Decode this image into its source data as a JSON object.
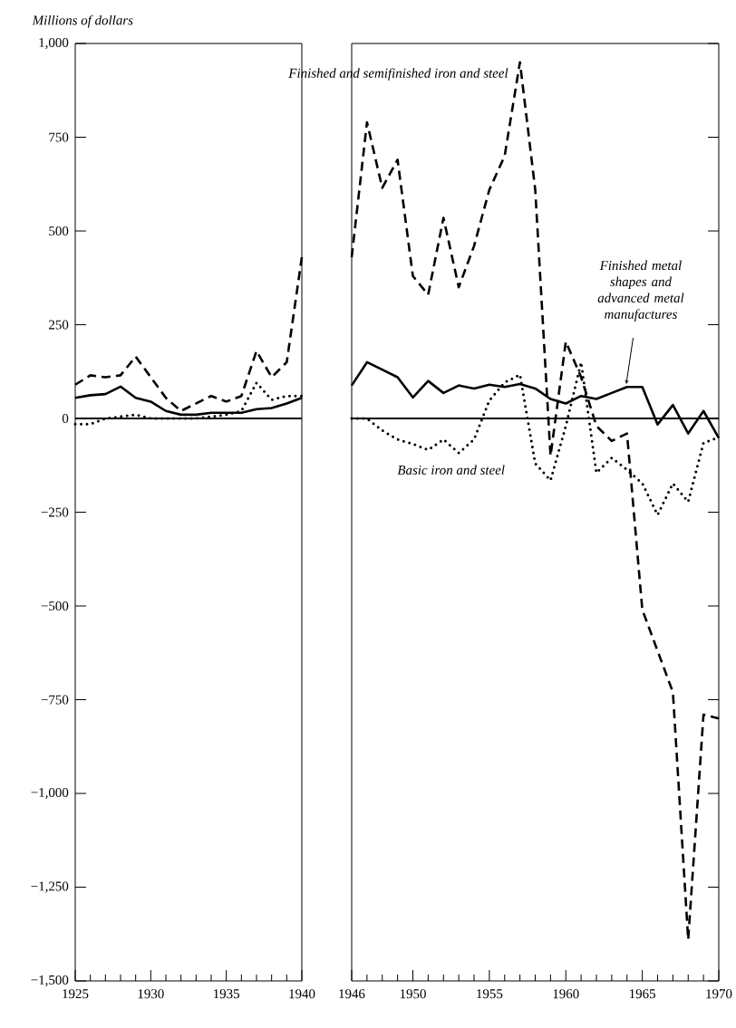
{
  "chart_data": [
    {
      "type": "line",
      "ylabel": "Millions of dollars",
      "xlim": [
        1925,
        1940
      ],
      "ylim": [
        -1500,
        1000
      ],
      "xticks": [
        1925,
        {
          "value": 1926,
          "label": null
        },
        {
          "value": 1927,
          "label": null
        },
        {
          "value": 1928,
          "label": null
        },
        {
          "value": 1929,
          "label": null
        },
        1930,
        {
          "value": 1931,
          "label": null
        },
        {
          "value": 1932,
          "label": null
        },
        {
          "value": 1933,
          "label": null
        },
        {
          "value": 1934,
          "label": null
        },
        1935,
        {
          "value": 1936,
          "label": null
        },
        {
          "value": 1937,
          "label": null
        },
        {
          "value": 1938,
          "label": null
        },
        {
          "value": 1939,
          "label": null
        },
        1940
      ],
      "yticks": [
        {
          "value": -1500,
          "label": "−1,500"
        },
        {
          "value": -1250,
          "label": "−1,250"
        },
        {
          "value": -1000,
          "label": "−1,000"
        },
        {
          "value": -750,
          "label": "−750"
        },
        {
          "value": -500,
          "label": "−500"
        },
        {
          "value": -250,
          "label": "−250"
        },
        0,
        250,
        500,
        750,
        {
          "value": 1000,
          "label": "1,000"
        }
      ],
      "ref_lines": [
        {
          "axis": "y",
          "value": 0
        }
      ],
      "x": [
        1925,
        1926,
        1927,
        1928,
        1929,
        1930,
        1931,
        1932,
        1933,
        1934,
        1935,
        1936,
        1937,
        1938,
        1939,
        1940
      ],
      "series": [
        {
          "color": "#000000",
          "line_style": "dashed",
          "values": [
            90,
            115,
            110,
            115,
            165,
            110,
            55,
            20,
            40,
            60,
            45,
            60,
            180,
            110,
            150,
            430
          ]
        },
        {
          "color": "#000000",
          "line_style": "solid",
          "values": [
            55,
            62,
            65,
            85,
            55,
            45,
            20,
            10,
            10,
            15,
            15,
            15,
            25,
            28,
            40,
            55
          ]
        },
        {
          "color": "#000000",
          "line_style": "dotted",
          "values": [
            -15,
            -15,
            0,
            5,
            10,
            0,
            0,
            0,
            0,
            5,
            10,
            20,
            95,
            50,
            60,
            60
          ]
        }
      ]
    },
    {
      "type": "line",
      "xlim": [
        1946,
        1970
      ],
      "ylim": [
        -1500,
        1000
      ],
      "tick_labels": "x",
      "xticks": [
        1946,
        {
          "value": 1947,
          "label": null
        },
        {
          "value": 1948,
          "label": null
        },
        {
          "value": 1949,
          "label": null
        },
        1950,
        {
          "value": 1951,
          "label": null
        },
        {
          "value": 1952,
          "label": null
        },
        {
          "value": 1953,
          "label": null
        },
        {
          "value": 1954,
          "label": null
        },
        1955,
        {
          "value": 1956,
          "label": null
        },
        {
          "value": 1957,
          "label": null
        },
        {
          "value": 1958,
          "label": null
        },
        {
          "value": 1959,
          "label": null
        },
        1960,
        {
          "value": 1961,
          "label": null
        },
        {
          "value": 1962,
          "label": null
        },
        {
          "value": 1963,
          "label": null
        },
        {
          "value": 1964,
          "label": null
        },
        1965,
        {
          "value": 1966,
          "label": null
        },
        {
          "value": 1967,
          "label": null
        },
        {
          "value": 1968,
          "label": null
        },
        {
          "value": 1969,
          "label": null
        },
        1970
      ],
      "yticks": [
        -1500,
        -1250,
        -1000,
        -750,
        -500,
        -250,
        0,
        250,
        500,
        750,
        1000
      ],
      "ref_lines": [
        {
          "axis": "y",
          "value": 0
        }
      ],
      "x": [
        1946,
        1947,
        1948,
        1949,
        1950,
        1951,
        1952,
        1953,
        1954,
        1955,
        1956,
        1957,
        1958,
        1959,
        1960,
        1961,
        1962,
        1963,
        1964,
        1965,
        1966,
        1967,
        1968,
        1969,
        1970
      ],
      "series": [
        {
          "name": "Finished and semifinished iron and steel",
          "color": "#000000",
          "line_style": "dashed",
          "values": [
            430,
            790,
            615,
            690,
            380,
            330,
            535,
            350,
            460,
            610,
            700,
            950,
            610,
            -100,
            205,
            110,
            -20,
            -60,
            -40,
            -510,
            -620,
            -730,
            -1390,
            -790,
            -800
          ]
        },
        {
          "name": "Finished metal shapes and advanced metal manufactures",
          "color": "#000000",
          "line_style": "solid",
          "values": [
            88,
            150,
            130,
            110,
            56,
            100,
            68,
            88,
            80,
            90,
            84,
            92,
            80,
            52,
            40,
            60,
            52,
            68,
            84,
            84,
            -16,
            36,
            -40,
            20,
            -52
          ]
        },
        {
          "name": "Basic iron and steel",
          "color": "#000000",
          "line_style": "dotted",
          "values": [
            0,
            0,
            -32,
            -56,
            -68,
            -84,
            -56,
            -92,
            -56,
            48,
            96,
            117,
            -120,
            -165,
            -20,
            150,
            -145,
            -105,
            -137,
            -173,
            -257,
            -173,
            -222,
            -65,
            -50
          ]
        }
      ]
    }
  ]
}
